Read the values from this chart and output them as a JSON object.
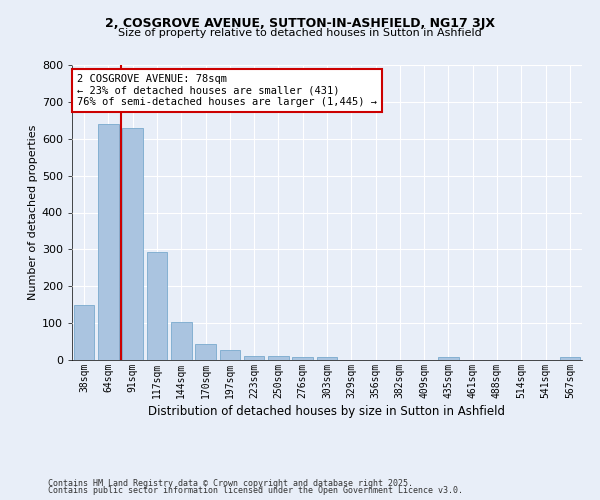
{
  "title1": "2, COSGROVE AVENUE, SUTTON-IN-ASHFIELD, NG17 3JX",
  "title2": "Size of property relative to detached houses in Sutton in Ashfield",
  "xlabel": "Distribution of detached houses by size in Sutton in Ashfield",
  "ylabel": "Number of detached properties",
  "categories": [
    "38sqm",
    "64sqm",
    "91sqm",
    "117sqm",
    "144sqm",
    "170sqm",
    "197sqm",
    "223sqm",
    "250sqm",
    "276sqm",
    "303sqm",
    "329sqm",
    "356sqm",
    "382sqm",
    "409sqm",
    "435sqm",
    "461sqm",
    "488sqm",
    "514sqm",
    "541sqm",
    "567sqm"
  ],
  "values": [
    150,
    640,
    630,
    293,
    103,
    43,
    28,
    10,
    10,
    7,
    7,
    0,
    0,
    0,
    0,
    7,
    0,
    0,
    0,
    0,
    7
  ],
  "bar_color": "#aac4e0",
  "bar_edge_color": "#7aaace",
  "background_color": "#e8eef8",
  "grid_color": "#ffffff",
  "red_line_x": 1.5,
  "annotation_line1": "2 COSGROVE AVENUE: 78sqm",
  "annotation_line2": "← 23% of detached houses are smaller (431)",
  "annotation_line3": "76% of semi-detached houses are larger (1,445) →",
  "annotation_box_color": "#ffffff",
  "annotation_box_edge": "#cc0000",
  "red_line_color": "#cc0000",
  "ylim": [
    0,
    800
  ],
  "yticks": [
    0,
    100,
    200,
    300,
    400,
    500,
    600,
    700,
    800
  ],
  "footer1": "Contains HM Land Registry data © Crown copyright and database right 2025.",
  "footer2": "Contains public sector information licensed under the Open Government Licence v3.0."
}
